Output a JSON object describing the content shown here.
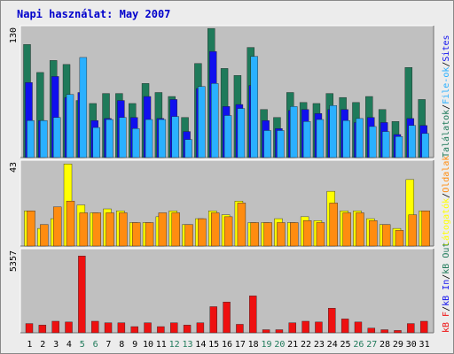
{
  "title": "Napi használat: May 2007",
  "colors": {
    "title": "#0000cc",
    "hits": "#1f7a5a",
    "files": "#2ab0ff",
    "sites": "#1010ee",
    "visits": "#ffff00",
    "pages": "#ff8c10",
    "kbf": "#ee1010",
    "panel_bg": "#c0c0c0",
    "frame_bg": "#ececec",
    "weekend_label": "#1f7a5a"
  },
  "chart_data": [
    {
      "type": "bar",
      "name": "top",
      "ymax_label": "130",
      "ylim": [
        0,
        130
      ],
      "categories": [
        "1",
        "2",
        "3",
        "4",
        "5",
        "6",
        "7",
        "8",
        "9",
        "10",
        "11",
        "12",
        "13",
        "14",
        "15",
        "16",
        "17",
        "18",
        "19",
        "20",
        "21",
        "22",
        "23",
        "24",
        "25",
        "26",
        "27",
        "28",
        "29",
        "30",
        "31"
      ],
      "series": [
        {
          "name": "Találatok",
          "color": "#1f7a5a",
          "values": [
            113,
            85,
            97,
            93,
            57,
            54,
            64,
            64,
            54,
            74,
            65,
            61,
            40,
            94,
            129,
            89,
            82,
            110,
            48,
            40,
            65,
            55,
            54,
            64,
            60,
            55,
            61,
            48,
            36,
            90,
            58
          ]
        },
        {
          "name": "Sites",
          "color": "#1010ee",
          "values": [
            75,
            37,
            81,
            60,
            65,
            37,
            39,
            57,
            40,
            61,
            39,
            58,
            26,
            69,
            106,
            51,
            53,
            72,
            37,
            29,
            47,
            48,
            44,
            48,
            48,
            35,
            40,
            35,
            23,
            39,
            32
          ]
        },
        {
          "name": "File-ok",
          "color": "#2ab0ff",
          "values": [
            37,
            37,
            40,
            63,
            100,
            30,
            38,
            40,
            29,
            38,
            38,
            41,
            18,
            71,
            74,
            42,
            49,
            101,
            27,
            27,
            51,
            36,
            38,
            52,
            37,
            39,
            31,
            26,
            21,
            32,
            24
          ]
        }
      ],
      "legend": [
        "Találatok",
        "/",
        "File-ok",
        "/",
        "Sites"
      ]
    },
    {
      "type": "bar",
      "name": "middle",
      "ymax_label": "43",
      "ylim": [
        0,
        43
      ],
      "series": [
        {
          "name": "Látogatók",
          "color": "#ffff00",
          "values": [
            18,
            9,
            14,
            42,
            21,
            17,
            19,
            18,
            12,
            12,
            15,
            18,
            11,
            14,
            18,
            16,
            23,
            12,
            12,
            14,
            12,
            15,
            13,
            28,
            18,
            18,
            14,
            11,
            9,
            34,
            18
          ]
        },
        {
          "name": "Oldalak",
          "color": "#ff8c10",
          "values": [
            18,
            11,
            20,
            23,
            17,
            17,
            17,
            17,
            12,
            12,
            17,
            17,
            11,
            14,
            17,
            15,
            22,
            12,
            12,
            12,
            12,
            13,
            12,
            22,
            17,
            17,
            13,
            11,
            8,
            16,
            18
          ]
        }
      ],
      "legend": [
        "Látogatók",
        "/",
        "Oldalak"
      ]
    },
    {
      "type": "bar",
      "name": "bottom",
      "ymax_label": "5357",
      "ylim": [
        0,
        5357
      ],
      "series": [
        {
          "name": "kB F",
          "color": "#ee1010",
          "values": [
            600,
            500,
            750,
            700,
            5000,
            750,
            650,
            650,
            400,
            650,
            400,
            650,
            500,
            650,
            1700,
            2000,
            550,
            2400,
            200,
            200,
            650,
            750,
            700,
            1600,
            900,
            700,
            300,
            200,
            150,
            600,
            750
          ]
        }
      ],
      "legend": [
        "kB F",
        "/",
        "kB In",
        "/",
        "kB Out"
      ]
    }
  ],
  "x_labels": [
    {
      "text": "1",
      "weekend": false
    },
    {
      "text": "2",
      "weekend": false
    },
    {
      "text": "3",
      "weekend": false
    },
    {
      "text": "4",
      "weekend": false
    },
    {
      "text": "5",
      "weekend": true
    },
    {
      "text": "6",
      "weekend": true
    },
    {
      "text": "7",
      "weekend": false
    },
    {
      "text": "8",
      "weekend": false
    },
    {
      "text": "9",
      "weekend": false
    },
    {
      "text": "10",
      "weekend": false
    },
    {
      "text": "11",
      "weekend": false
    },
    {
      "text": "12",
      "weekend": true
    },
    {
      "text": "13",
      "weekend": true
    },
    {
      "text": "14",
      "weekend": false
    },
    {
      "text": "15",
      "weekend": false
    },
    {
      "text": "16",
      "weekend": false
    },
    {
      "text": "17",
      "weekend": false
    },
    {
      "text": "18",
      "weekend": false
    },
    {
      "text": "19",
      "weekend": true
    },
    {
      "text": "20",
      "weekend": true
    },
    {
      "text": "21",
      "weekend": false
    },
    {
      "text": "22",
      "weekend": false
    },
    {
      "text": "23",
      "weekend": false
    },
    {
      "text": "24",
      "weekend": false
    },
    {
      "text": "25",
      "weekend": false
    },
    {
      "text": "26",
      "weekend": true
    },
    {
      "text": "27",
      "weekend": true
    },
    {
      "text": "28",
      "weekend": false
    },
    {
      "text": "29",
      "weekend": false
    },
    {
      "text": "30",
      "weekend": false
    },
    {
      "text": "31",
      "weekend": false
    }
  ]
}
